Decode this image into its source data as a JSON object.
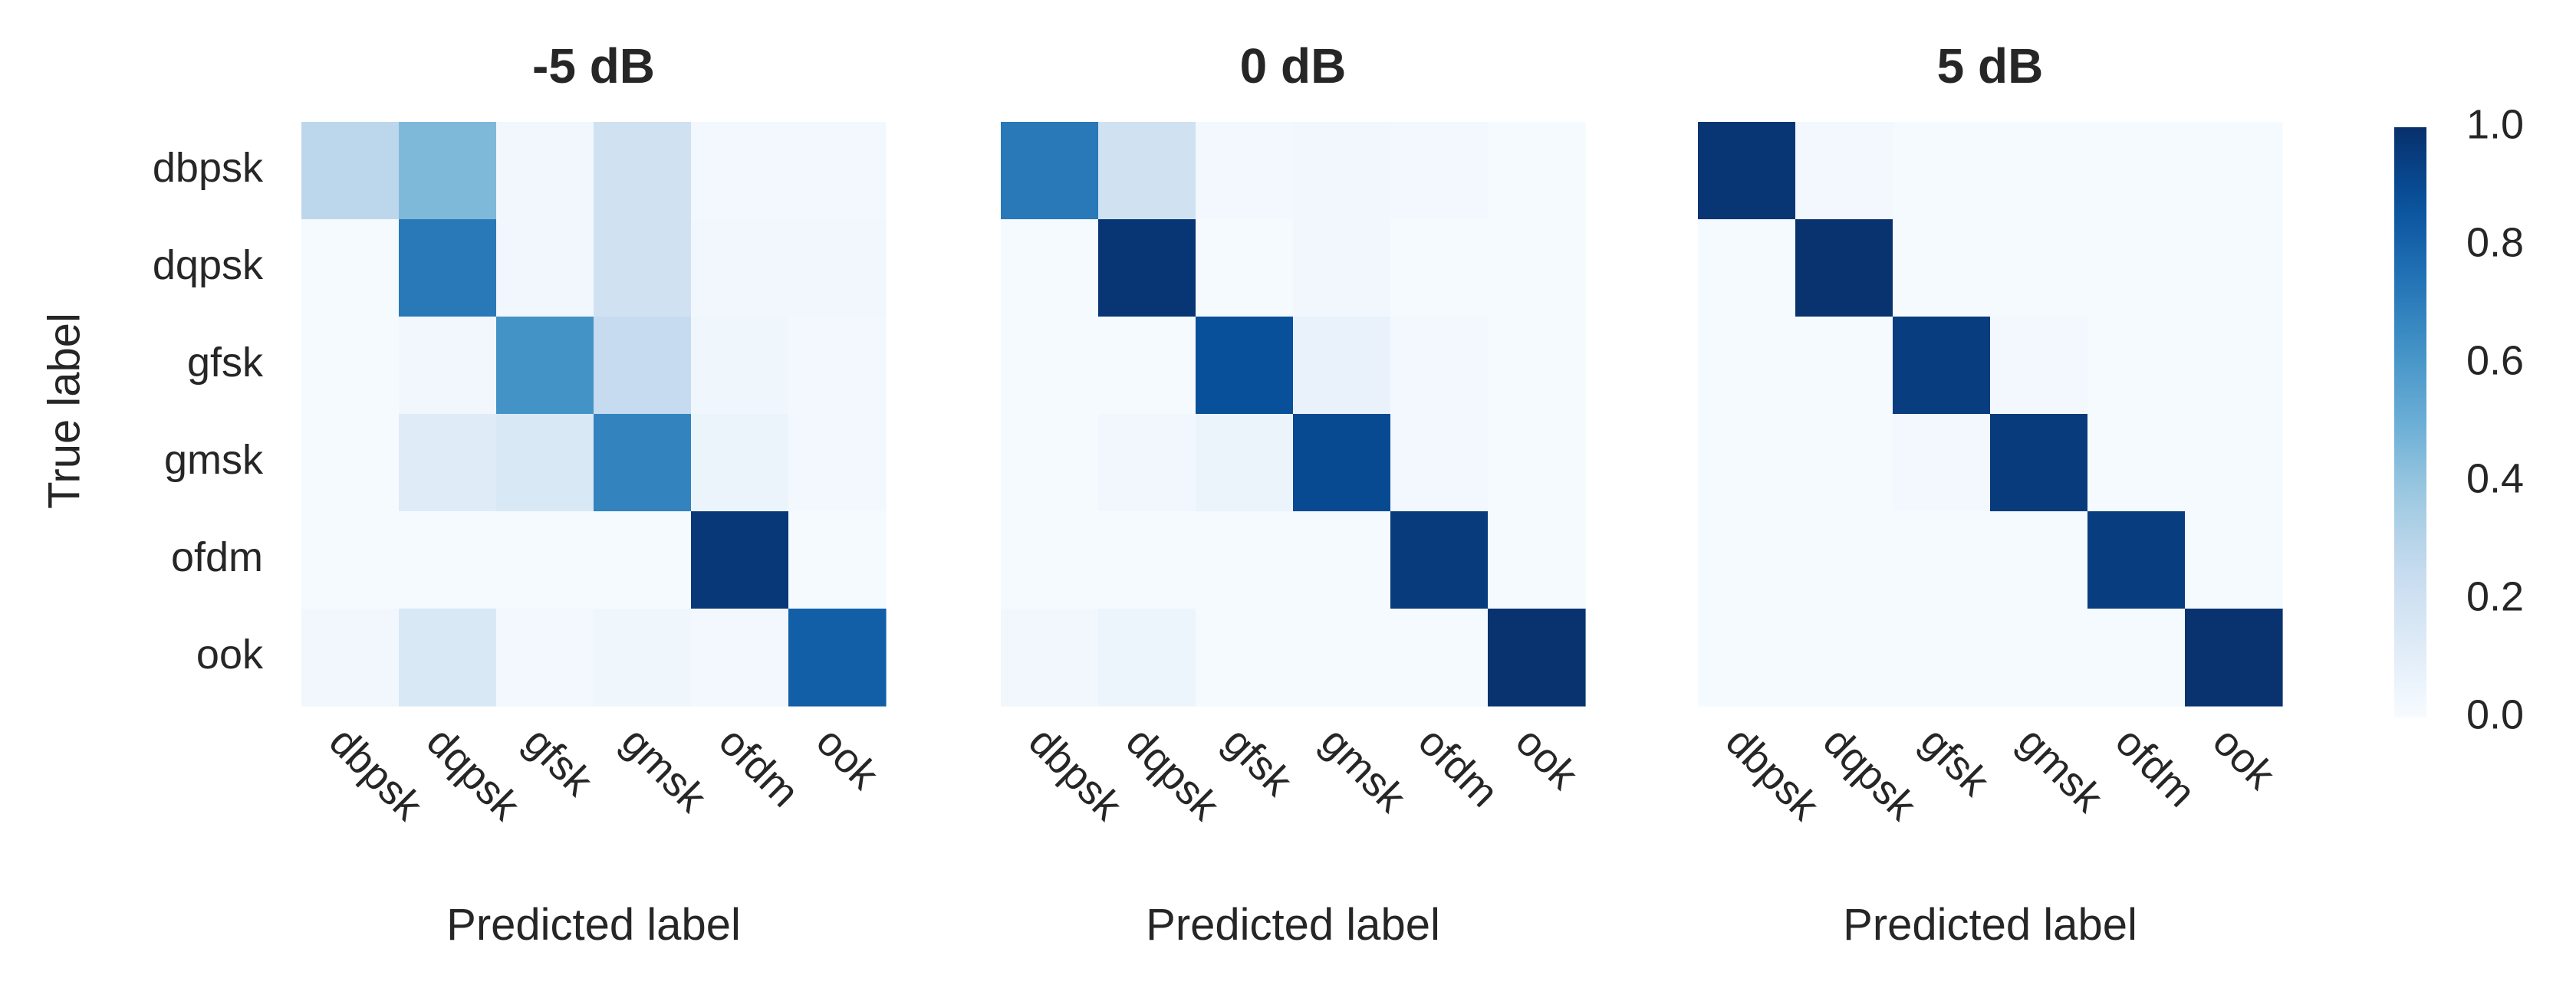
{
  "chart_data": {
    "type": "heatmap",
    "colormap": "Blues",
    "vmin": 0.0,
    "vmax": 1.0,
    "categories": [
      "dbpsk",
      "dqpsk",
      "gfsk",
      "gmsk",
      "ofdm",
      "ook"
    ],
    "ylabel": "True label",
    "xlabel": "Predicted label",
    "colorbar_ticks": [
      "0.0",
      "0.2",
      "0.4",
      "0.6",
      "0.8",
      "1.0"
    ],
    "panels": [
      {
        "title": "-5 dB",
        "matrix": [
          [
            0.28,
            0.45,
            0.03,
            0.2,
            0.02,
            0.02
          ],
          [
            0.01,
            0.72,
            0.03,
            0.2,
            0.03,
            0.03
          ],
          [
            0.01,
            0.03,
            0.62,
            0.25,
            0.04,
            0.02
          ],
          [
            0.01,
            0.12,
            0.15,
            0.68,
            0.06,
            0.02
          ],
          [
            0.01,
            0.01,
            0.01,
            0.01,
            0.97,
            0.01
          ],
          [
            0.03,
            0.15,
            0.02,
            0.04,
            0.02,
            0.82
          ]
        ]
      },
      {
        "title": "0 dB",
        "matrix": [
          [
            0.72,
            0.2,
            0.02,
            0.03,
            0.02,
            0.01
          ],
          [
            0.01,
            0.98,
            0.01,
            0.03,
            0.01,
            0.01
          ],
          [
            0.01,
            0.01,
            0.88,
            0.07,
            0.02,
            0.01
          ],
          [
            0.01,
            0.03,
            0.06,
            0.9,
            0.02,
            0.01
          ],
          [
            0.01,
            0.01,
            0.01,
            0.01,
            0.96,
            0.01
          ],
          [
            0.03,
            0.05,
            0.01,
            0.01,
            0.01,
            0.99
          ]
        ]
      },
      {
        "title": "5 dB",
        "matrix": [
          [
            0.98,
            0.02,
            0.01,
            0.01,
            0.01,
            0.01
          ],
          [
            0.01,
            0.99,
            0.01,
            0.01,
            0.01,
            0.01
          ],
          [
            0.01,
            0.01,
            0.95,
            0.02,
            0.01,
            0.01
          ],
          [
            0.01,
            0.01,
            0.02,
            0.96,
            0.01,
            0.01
          ],
          [
            0.01,
            0.01,
            0.01,
            0.01,
            0.95,
            0.01
          ],
          [
            0.01,
            0.01,
            0.01,
            0.01,
            0.01,
            0.99
          ]
        ]
      }
    ]
  }
}
